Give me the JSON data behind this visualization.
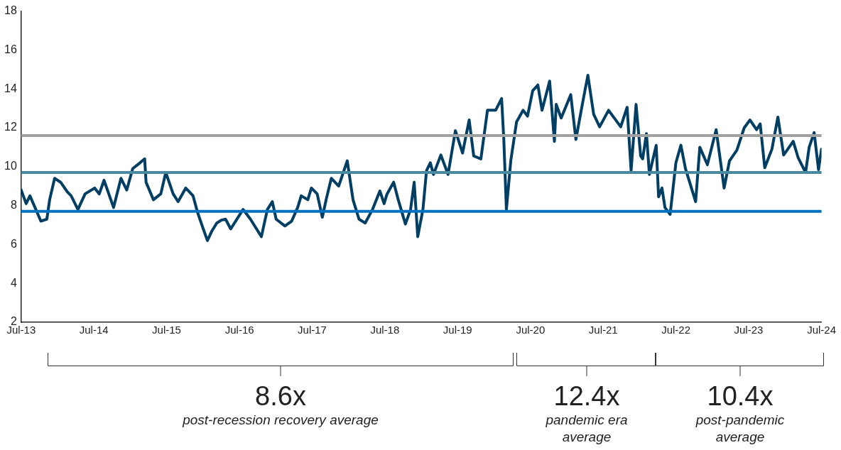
{
  "chart_data": {
    "type": "line",
    "x": [
      "2013-07-01",
      "2013-07-26",
      "2013-08-14",
      "2013-10-08",
      "2013-11-07",
      "2013-11-21",
      "2013-12-16",
      "2014-01-15",
      "2014-02-18",
      "2014-03-09",
      "2014-04-12",
      "2014-05-18",
      "2014-07-05",
      "2014-07-28",
      "2014-08-21",
      "2014-10-08",
      "2014-11-14",
      "2014-12-13",
      "2015-01-12",
      "2015-02-18",
      "2015-03-13",
      "2015-03-20",
      "2015-04-26",
      "2015-06-02",
      "2015-06-27",
      "2015-08-03",
      "2015-08-28",
      "2015-10-05",
      "2015-11-11",
      "2015-12-02",
      "2015-12-27",
      "2016-01-22",
      "2016-02-14",
      "2016-03-09",
      "2016-04-01",
      "2016-04-22",
      "2016-05-18",
      "2016-07-19",
      "2016-08-25",
      "2016-10-19",
      "2016-11-18",
      "2016-12-13",
      "2017-01-01",
      "2017-02-14",
      "2017-03-20",
      "2017-04-19",
      "2017-05-07",
      "2017-06-09",
      "2017-06-27",
      "2017-07-26",
      "2017-08-21",
      "2017-09-09",
      "2017-10-05",
      "2017-11-11",
      "2017-12-24",
      "2018-01-22",
      "2018-02-21",
      "2018-03-24",
      "2018-04-30",
      "2018-06-06",
      "2018-06-27",
      "2018-07-12",
      "2018-08-14",
      "2018-09-06",
      "2018-10-12",
      "2018-11-07",
      "2018-11-25",
      "2018-12-13",
      "2019-01-08",
      "2019-01-26",
      "2019-02-14",
      "2019-03-02",
      "2019-04-08",
      "2019-05-14",
      "2019-06-20",
      "2019-07-26",
      "2019-08-28",
      "2019-09-20",
      "2019-10-26",
      "2019-11-28",
      "2020-01-08",
      "2020-02-07",
      "2020-02-18",
      "2020-03-02",
      "2020-03-24",
      "2020-04-22",
      "2020-05-25",
      "2020-06-16",
      "2020-07-12",
      "2020-08-07",
      "2020-08-28",
      "2020-10-05",
      "2020-10-29",
      "2020-11-07",
      "2020-12-02",
      "2021-01-19",
      "2021-02-14",
      "2021-03-20",
      "2021-04-15",
      "2021-05-14",
      "2021-06-13",
      "2021-07-28",
      "2021-09-27",
      "2021-10-29",
      "2021-11-18",
      "2021-12-13",
      "2022-01-05",
      "2022-01-15",
      "2022-02-03",
      "2022-02-18",
      "2022-03-24",
      "2022-04-05",
      "2022-04-22",
      "2022-05-07",
      "2022-06-02",
      "2022-07-01",
      "2022-07-26",
      "2022-08-18",
      "2022-10-08",
      "2022-10-29",
      "2022-12-06",
      "2023-01-19",
      "2023-02-28",
      "2023-03-27",
      "2023-05-03",
      "2023-06-09",
      "2023-07-08",
      "2023-08-10",
      "2023-08-28",
      "2023-09-20",
      "2023-10-26",
      "2023-11-25",
      "2023-12-24",
      "2024-02-10",
      "2024-03-06",
      "2024-04-12",
      "2024-04-30",
      "2024-05-25",
      "2024-06-16",
      "2024-07-01"
    ],
    "series": [
      {
        "color": "#003f63",
        "values": [
          8.8,
          8.1,
          8.5,
          7.2,
          7.3,
          8.3,
          9.4,
          9.2,
          8.7,
          8.5,
          7.8,
          8.6,
          8.9,
          8.6,
          9.3,
          7.9,
          9.4,
          8.8,
          9.9,
          10.2,
          10.4,
          9.2,
          8.3,
          8.6,
          9.7,
          8.6,
          8.2,
          8.9,
          8.5,
          7.7,
          6.95,
          6.2,
          6.7,
          7.1,
          7.25,
          7.3,
          6.8,
          7.8,
          7.3,
          6.4,
          7.8,
          8.2,
          7.3,
          6.95,
          7.2,
          7.9,
          8.5,
          8.3,
          8.9,
          8.6,
          7.4,
          8.3,
          9.4,
          9.0,
          10.3,
          8.3,
          7.3,
          7.1,
          7.8,
          8.75,
          8.1,
          8.6,
          9.2,
          8.3,
          7.05,
          7.8,
          9.2,
          6.4,
          7.8,
          9.8,
          10.2,
          9.6,
          10.6,
          9.6,
          11.85,
          10.7,
          12.4,
          10.55,
          10.4,
          12.9,
          12.9,
          13.5,
          11.4,
          7.8,
          10.3,
          12.3,
          12.9,
          12.6,
          13.9,
          14.2,
          12.9,
          14.4,
          11.3,
          13.2,
          12.5,
          13.7,
          11.4,
          13.3,
          14.7,
          12.7,
          12.05,
          12.9,
          12.05,
          13.05,
          9.8,
          13.2,
          10.55,
          10.4,
          11.7,
          9.6,
          11.1,
          8.45,
          8.9,
          7.9,
          7.55,
          10.2,
          11.1,
          9.9,
          8.2,
          11.0,
          10.1,
          11.9,
          8.9,
          10.3,
          10.85,
          12.0,
          12.4,
          11.9,
          12.2,
          9.95,
          10.9,
          12.55,
          10.6,
          11.3,
          10.45,
          9.7,
          11.0,
          11.75,
          9.85,
          10.9
        ]
      }
    ],
    "xlim": [
      "2013-07-01",
      "2024-07-01"
    ],
    "xticks": [
      {
        "value": "2013-07-01",
        "label": "Jul-13"
      },
      {
        "value": "2014-07-01",
        "label": "Jul-14"
      },
      {
        "value": "2015-07-01",
        "label": "Jul-15"
      },
      {
        "value": "2016-07-01",
        "label": "Jul-16"
      },
      {
        "value": "2017-07-01",
        "label": "Jul-17"
      },
      {
        "value": "2018-07-01",
        "label": "Jul-18"
      },
      {
        "value": "2019-07-01",
        "label": "Jul-19"
      },
      {
        "value": "2020-07-01",
        "label": "Jul-20"
      },
      {
        "value": "2021-07-01",
        "label": "Jul-21"
      },
      {
        "value": "2022-07-01",
        "label": "Jul-22"
      },
      {
        "value": "2023-07-01",
        "label": "Jul-23"
      },
      {
        "value": "2024-07-01",
        "label": "Jul-24"
      }
    ],
    "ylim": [
      2,
      18
    ],
    "yticks": [
      2,
      4,
      6,
      8,
      10,
      12,
      14,
      16,
      18
    ],
    "ref_lines": [
      {
        "axis": "y",
        "value": 11.6,
        "color": "#a0a0a0"
      },
      {
        "axis": "y",
        "value": 9.7,
        "color": "#4a8aa0"
      },
      {
        "axis": "y",
        "value": 7.7,
        "color": "#0070c0"
      }
    ],
    "annotations": [
      "8.6x",
      "post-recession recovery average",
      "12.4x",
      "pandemic era average",
      "10.4x",
      "post-pandemic average"
    ],
    "grid": false,
    "legend": false,
    "marker": "none",
    "line_style": "solid"
  }
}
